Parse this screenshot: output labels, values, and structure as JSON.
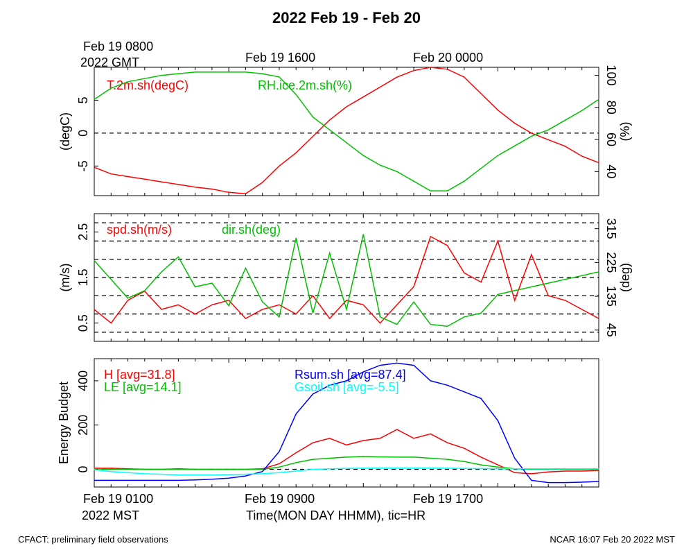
{
  "title": "2022 Feb 19 - Feb 20",
  "top_time_axis": {
    "first_label": "Feb 19 0800",
    "first_sublabel": "2022 GMT",
    "labels": [
      "Feb 19 1600",
      "Feb 20 0000"
    ]
  },
  "bottom_time_axis": {
    "first_label": "Feb 19 0100",
    "first_sublabel": "2022 MST",
    "labels": [
      "Feb 19 0900",
      "Feb 19 1700"
    ],
    "xlabel": "Time(MON DAY HHMM), tic=HR"
  },
  "footer": {
    "left": "CFACT: preliminary field observations",
    "right": "NCAR 16:07 Feb 20 2022 MST"
  },
  "colors": {
    "red": "#ff0000",
    "green": "#00c000",
    "blue": "#0000ff",
    "cyan": "#00ffff",
    "black": "#000000"
  },
  "chart_data": [
    {
      "type": "line",
      "panel": "temperature-humidity",
      "x_unit": "hours since Feb 19 0100 MST",
      "xlim": [
        0,
        30
      ],
      "ylabel": "(degC)",
      "ylabel_right": "(%)",
      "ylim": [
        -9.5,
        10
      ],
      "ylim_right": [
        25,
        105
      ],
      "yticks": [
        "-5",
        "0",
        "5"
      ],
      "yticks_right": [
        "40",
        "60",
        "80",
        "100"
      ],
      "zero_line": 0,
      "series": [
        {
          "name": "T.2m.sh(degC)",
          "axis": "left",
          "color": "red",
          "points": [
            [
              0,
              -5.2
            ],
            [
              1,
              -6.2
            ],
            [
              2,
              -6.6
            ],
            [
              3,
              -7.0
            ],
            [
              4,
              -7.4
            ],
            [
              5,
              -7.8
            ],
            [
              6,
              -8.2
            ],
            [
              7,
              -8.5
            ],
            [
              8,
              -9.0
            ],
            [
              9,
              -9.2
            ],
            [
              10,
              -7.5
            ],
            [
              11,
              -5.0
            ],
            [
              12,
              -3.0
            ],
            [
              13,
              -0.5
            ],
            [
              14,
              2.0
            ],
            [
              15,
              4.0
            ],
            [
              16,
              5.5
            ],
            [
              17,
              7.0
            ],
            [
              18,
              8.5
            ],
            [
              19,
              9.5
            ],
            [
              20,
              10.0
            ],
            [
              21,
              9.7
            ],
            [
              22,
              8.5
            ],
            [
              23,
              6.0
            ],
            [
              24,
              3.5
            ],
            [
              25,
              1.5
            ],
            [
              26,
              0.0
            ],
            [
              27,
              -1.0
            ],
            [
              28,
              -2.0
            ],
            [
              29,
              -3.5
            ],
            [
              30,
              -4.5
            ]
          ]
        },
        {
          "name": "RH.ice.2m.sh(%)",
          "axis": "right",
          "color": "green",
          "points": [
            [
              0,
              85
            ],
            [
              1,
              92
            ],
            [
              2,
              96
            ],
            [
              3,
              98
            ],
            [
              4,
              100
            ],
            [
              5,
              101
            ],
            [
              6,
              102
            ],
            [
              7,
              102
            ],
            [
              8,
              102
            ],
            [
              9,
              102
            ],
            [
              10,
              101
            ],
            [
              11,
              99
            ],
            [
              12,
              88
            ],
            [
              13,
              74
            ],
            [
              14,
              66
            ],
            [
              15,
              58
            ],
            [
              16,
              50
            ],
            [
              17,
              44
            ],
            [
              18,
              40
            ],
            [
              19,
              34
            ],
            [
              20,
              28
            ],
            [
              21,
              28
            ],
            [
              22,
              34
            ],
            [
              23,
              42
            ],
            [
              24,
              50
            ],
            [
              25,
              56
            ],
            [
              26,
              62
            ],
            [
              27,
              66
            ],
            [
              28,
              72
            ],
            [
              29,
              78
            ],
            [
              30,
              85
            ]
          ]
        }
      ]
    },
    {
      "type": "line",
      "panel": "wind",
      "x_unit": "hours since Feb 19 0100 MST",
      "xlim": [
        0,
        30
      ],
      "ylabel": "(m/s)",
      "ylabel_right": "(deg)",
      "ylim": [
        0.1,
        2.9
      ],
      "ylim_right": [
        15,
        355
      ],
      "yticks": [
        "0.5",
        "1.5",
        "2.5"
      ],
      "yticks_right": [
        "45",
        "135",
        "225",
        "315"
      ],
      "dashed_lines": [
        0.3,
        0.7,
        1.1,
        1.5,
        1.9,
        2.3,
        2.7
      ],
      "series": [
        {
          "name": "spd.sh(m/s)",
          "axis": "left",
          "color": "red",
          "points": [
            [
              0,
              0.8
            ],
            [
              1,
              0.5
            ],
            [
              2,
              1.0
            ],
            [
              3,
              1.2
            ],
            [
              4,
              0.8
            ],
            [
              5,
              0.9
            ],
            [
              6,
              0.7
            ],
            [
              7,
              0.9
            ],
            [
              8,
              1.0
            ],
            [
              9,
              0.6
            ],
            [
              10,
              0.8
            ],
            [
              11,
              0.9
            ],
            [
              12,
              0.7
            ],
            [
              13,
              1.1
            ],
            [
              14,
              0.6
            ],
            [
              15,
              1.0
            ],
            [
              16,
              0.9
            ],
            [
              17,
              0.5
            ],
            [
              18,
              0.9
            ],
            [
              19,
              1.3
            ],
            [
              20,
              2.4
            ],
            [
              21,
              2.2
            ],
            [
              22,
              1.6
            ],
            [
              23,
              1.4
            ],
            [
              24,
              2.3
            ],
            [
              25,
              1.0
            ],
            [
              26,
              2.0
            ],
            [
              27,
              1.1
            ],
            [
              28,
              1.0
            ],
            [
              29,
              0.8
            ],
            [
              30,
              0.6
            ]
          ]
        },
        {
          "name": "dir.sh(deg)",
          "axis": "right",
          "color": "green",
          "points": [
            [
              0,
              230
            ],
            [
              1,
              180
            ],
            [
              2,
              130
            ],
            [
              3,
              150
            ],
            [
              4,
              200
            ],
            [
              5,
              240
            ],
            [
              6,
              160
            ],
            [
              7,
              170
            ],
            [
              8,
              110
            ],
            [
              9,
              210
            ],
            [
              10,
              120
            ],
            [
              11,
              80
            ],
            [
              12,
              290
            ],
            [
              13,
              90
            ],
            [
              14,
              250
            ],
            [
              15,
              100
            ],
            [
              16,
              300
            ],
            [
              17,
              80
            ],
            [
              18,
              60
            ],
            [
              19,
              120
            ],
            [
              20,
              60
            ],
            [
              21,
              55
            ],
            [
              22,
              80
            ],
            [
              23,
              90
            ],
            [
              24,
              140
            ],
            [
              25,
              150
            ],
            [
              26,
              160
            ],
            [
              27,
              170
            ],
            [
              28,
              180
            ],
            [
              29,
              190
            ],
            [
              30,
              200
            ]
          ]
        }
      ]
    },
    {
      "type": "line",
      "panel": "energy-budget",
      "x_unit": "hours since Feb 19 0100 MST",
      "xlim": [
        0,
        30
      ],
      "ylabel": "Energy Budget",
      "ylim": [
        -80,
        500
      ],
      "yticks": [
        "0",
        "200",
        "400"
      ],
      "zero_line": 0,
      "series": [
        {
          "name": "H [avg=31.8]",
          "color": "red",
          "points": [
            [
              0,
              5
            ],
            [
              1,
              5
            ],
            [
              2,
              2
            ],
            [
              3,
              0
            ],
            [
              4,
              0
            ],
            [
              5,
              2
            ],
            [
              6,
              0
            ],
            [
              7,
              0
            ],
            [
              8,
              0
            ],
            [
              9,
              0
            ],
            [
              10,
              2
            ],
            [
              11,
              25
            ],
            [
              12,
              75
            ],
            [
              13,
              120
            ],
            [
              14,
              140
            ],
            [
              15,
              110
            ],
            [
              16,
              130
            ],
            [
              17,
              140
            ],
            [
              18,
              180
            ],
            [
              19,
              140
            ],
            [
              20,
              160
            ],
            [
              21,
              120
            ],
            [
              22,
              95
            ],
            [
              23,
              55
            ],
            [
              24,
              20
            ],
            [
              25,
              -15
            ],
            [
              26,
              -20
            ],
            [
              27,
              -12
            ],
            [
              28,
              -8
            ],
            [
              29,
              -8
            ],
            [
              30,
              -5
            ]
          ]
        },
        {
          "name": "LE [avg=14.1]",
          "color": "green",
          "points": [
            [
              0,
              2
            ],
            [
              1,
              0
            ],
            [
              2,
              0
            ],
            [
              3,
              0
            ],
            [
              4,
              0
            ],
            [
              5,
              0
            ],
            [
              6,
              0
            ],
            [
              7,
              0
            ],
            [
              8,
              0
            ],
            [
              9,
              0
            ],
            [
              10,
              0
            ],
            [
              11,
              10
            ],
            [
              12,
              30
            ],
            [
              13,
              45
            ],
            [
              14,
              50
            ],
            [
              15,
              55
            ],
            [
              16,
              58
            ],
            [
              17,
              56
            ],
            [
              18,
              55
            ],
            [
              19,
              55
            ],
            [
              20,
              50
            ],
            [
              21,
              45
            ],
            [
              22,
              35
            ],
            [
              23,
              20
            ],
            [
              24,
              10
            ],
            [
              25,
              2
            ],
            [
              26,
              0
            ],
            [
              27,
              0
            ],
            [
              28,
              0
            ],
            [
              29,
              0
            ],
            [
              30,
              0
            ]
          ]
        },
        {
          "name": "Rsum.sh [avg=87.4]",
          "color": "blue",
          "points": [
            [
              0,
              -50
            ],
            [
              1,
              -50
            ],
            [
              2,
              -50
            ],
            [
              3,
              -50
            ],
            [
              4,
              -50
            ],
            [
              5,
              -50
            ],
            [
              6,
              -48
            ],
            [
              7,
              -45
            ],
            [
              8,
              -40
            ],
            [
              9,
              -30
            ],
            [
              10,
              -10
            ],
            [
              11,
              80
            ],
            [
              12,
              250
            ],
            [
              13,
              340
            ],
            [
              14,
              380
            ],
            [
              15,
              400
            ],
            [
              16,
              440
            ],
            [
              17,
              470
            ],
            [
              18,
              480
            ],
            [
              19,
              470
            ],
            [
              20,
              400
            ],
            [
              21,
              380
            ],
            [
              22,
              350
            ],
            [
              23,
              320
            ],
            [
              24,
              220
            ],
            [
              25,
              50
            ],
            [
              26,
              -50
            ],
            [
              27,
              -60
            ],
            [
              28,
              -60
            ],
            [
              29,
              -58
            ],
            [
              30,
              -55
            ]
          ]
        },
        {
          "name": "Gsoil.sh [avg=-5.5]",
          "color": "cyan",
          "points": [
            [
              0,
              -2
            ],
            [
              1,
              -10
            ],
            [
              2,
              -15
            ],
            [
              3,
              -20
            ],
            [
              4,
              -22
            ],
            [
              5,
              -25
            ],
            [
              6,
              -25
            ],
            [
              7,
              -25
            ],
            [
              8,
              -24
            ],
            [
              9,
              -22
            ],
            [
              10,
              -20
            ],
            [
              11,
              -15
            ],
            [
              12,
              -8
            ],
            [
              13,
              0
            ],
            [
              14,
              2
            ],
            [
              15,
              4
            ],
            [
              16,
              5
            ],
            [
              17,
              6
            ],
            [
              18,
              6
            ],
            [
              19,
              6
            ],
            [
              20,
              6
            ],
            [
              21,
              5
            ],
            [
              22,
              4
            ],
            [
              23,
              3
            ],
            [
              24,
              2
            ],
            [
              25,
              2
            ],
            [
              26,
              2
            ],
            [
              27,
              2
            ],
            [
              28,
              2
            ],
            [
              29,
              2
            ],
            [
              30,
              2
            ]
          ]
        }
      ]
    }
  ]
}
